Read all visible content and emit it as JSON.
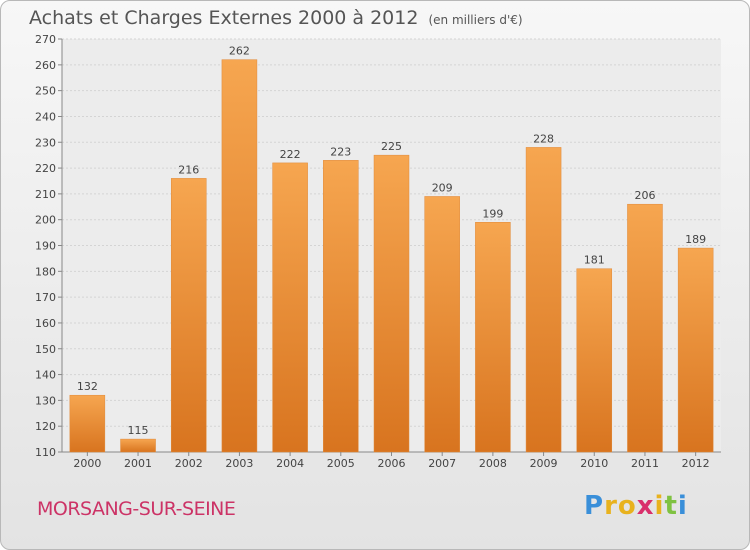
{
  "header": {
    "title": "Achats et Charges Externes 2000 à 2012",
    "unit": "(en milliers d'€)"
  },
  "footer": {
    "city": "MORSANG-SUR-SEINE",
    "logo_letters": [
      "P",
      "r",
      "o",
      "x",
      "i",
      "t",
      "i"
    ],
    "logo_colors": [
      "#3a8fd9",
      "#e8b21e",
      "#e8b21e",
      "#d92f6b",
      "#e8b21e",
      "#7fc241",
      "#3a8fd9"
    ]
  },
  "colors": {
    "bar_top": "#f6a650",
    "bar_bottom": "#d8741f",
    "axis_text": "#444444",
    "grid": "#d4d4d4"
  },
  "chart_data": {
    "type": "bar",
    "categories": [
      "2000",
      "2001",
      "2002",
      "2003",
      "2004",
      "2005",
      "2006",
      "2007",
      "2008",
      "2009",
      "2010",
      "2011",
      "2012"
    ],
    "values": [
      132,
      115,
      216,
      262,
      222,
      223,
      225,
      209,
      199,
      228,
      181,
      206,
      189
    ],
    "ylim": [
      110,
      270
    ],
    "yticks": [
      110,
      120,
      130,
      140,
      150,
      160,
      170,
      180,
      190,
      200,
      210,
      220,
      230,
      240,
      250,
      260,
      270
    ],
    "grid": true,
    "data_labels": true
  }
}
